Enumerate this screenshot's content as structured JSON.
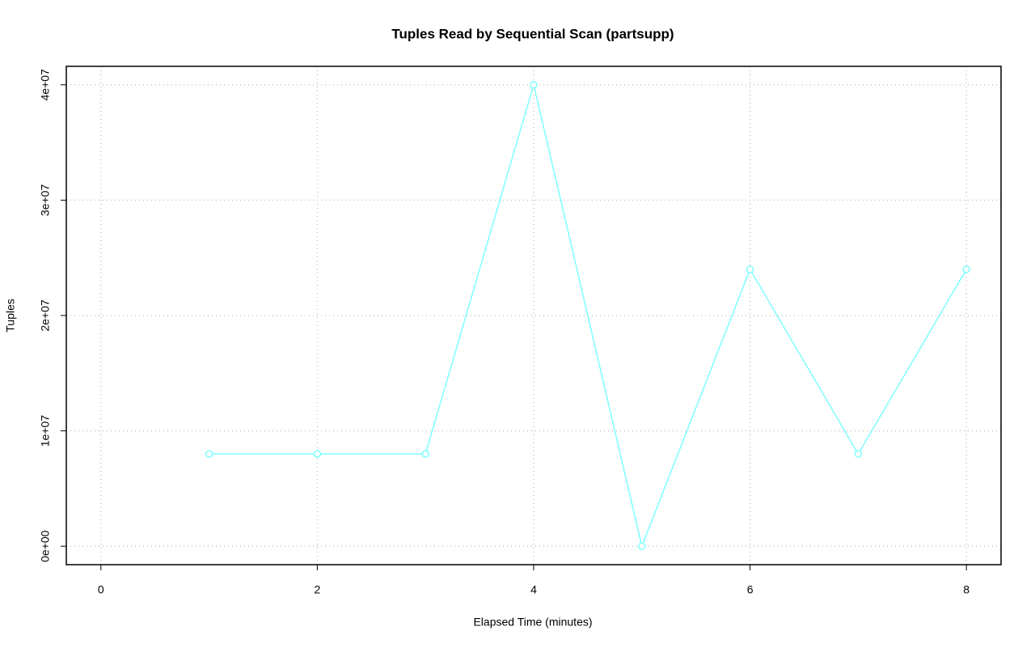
{
  "chart_data": {
    "type": "line",
    "title": "Tuples Read by Sequential Scan (partsupp)",
    "x_label": "Elapsed Time (minutes)",
    "y_label": "Tuples",
    "x": [
      1,
      2,
      3,
      4,
      5,
      6,
      7,
      8
    ],
    "values": [
      8000000,
      8000000,
      8000000,
      40000000,
      0,
      24000000,
      8000000,
      24000000
    ],
    "color": "#7fffff",
    "xlim": [
      -0.32,
      8.32
    ],
    "ylim": [
      -1600000,
      41600000
    ],
    "xticks": [
      0,
      2,
      4,
      6,
      8
    ],
    "yticks": [
      {
        "value": 0,
        "label": "0e+00"
      },
      {
        "value": 10000000,
        "label": "1e+07"
      },
      {
        "value": 20000000,
        "label": "2e+07"
      },
      {
        "value": 30000000,
        "label": "3e+07"
      },
      {
        "value": 40000000,
        "label": "4e+07"
      }
    ],
    "grid": true
  }
}
